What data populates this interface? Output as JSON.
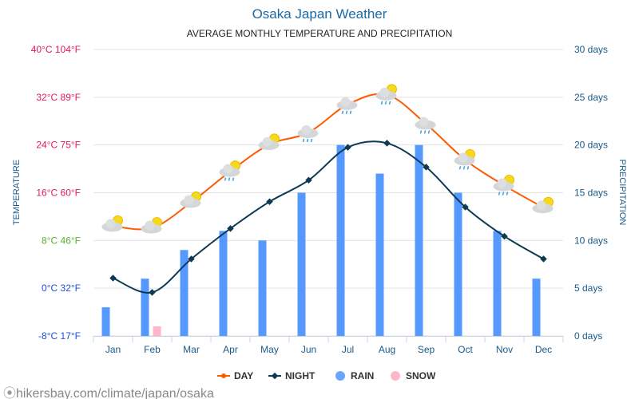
{
  "title": "Osaka Japan Weather",
  "subtitle": "AVERAGE MONTHLY TEMPERATURE AND PRECIPITATION",
  "footer": "hikersbay.com/climate/japan/osaka",
  "chart_data": {
    "type": "line+bar",
    "categories": [
      "Jan",
      "Feb",
      "Mar",
      "Apr",
      "May",
      "Jun",
      "Jul",
      "Aug",
      "Sep",
      "Oct",
      "Nov",
      "Dec"
    ],
    "ylabel_left": "TEMPERATURE",
    "ylabel_right": "PRECIPITATION",
    "ylim_left": [
      -8,
      40
    ],
    "ylim_right": [
      0,
      30
    ],
    "left_ticks": [
      {
        "v": 40,
        "label": "40°C 104°F",
        "color": "#e8175d"
      },
      {
        "v": 32,
        "label": "32°C 89°F",
        "color": "#e8175d"
      },
      {
        "v": 24,
        "label": "24°C 75°F",
        "color": "#e8175d"
      },
      {
        "v": 16,
        "label": "16°C 60°F",
        "color": "#e8175d"
      },
      {
        "v": 8,
        "label": "8°C 46°F",
        "color": "#5aae2e"
      },
      {
        "v": 0,
        "label": "0°C 32°F",
        "color": "#1f4fd6"
      },
      {
        "v": -8,
        "label": "-8°C 17°F",
        "color": "#1f4fd6"
      }
    ],
    "right_ticks": [
      {
        "v": 30,
        "label": "30 days"
      },
      {
        "v": 25,
        "label": "25 days"
      },
      {
        "v": 20,
        "label": "20 days"
      },
      {
        "v": 15,
        "label": "15 days"
      },
      {
        "v": 10,
        "label": "10 days"
      },
      {
        "v": 5,
        "label": "5 days"
      },
      {
        "v": 0,
        "label": "0 days"
      }
    ],
    "grid": true,
    "legend_position": "bottom",
    "series": [
      {
        "name": "DAY",
        "type": "line",
        "axis": "left",
        "color": "#ff5a00",
        "values": [
          10.4,
          10.1,
          14.4,
          19.6,
          24.1,
          26.1,
          30.8,
          32.4,
          27.5,
          21.5,
          17.2,
          13.5
        ]
      },
      {
        "name": "NIGHT",
        "type": "line",
        "axis": "left",
        "color": "#0d3a52",
        "values": [
          1.7,
          -0.7,
          4.9,
          10.0,
          14.5,
          18.1,
          23.6,
          24.3,
          20.3,
          13.6,
          8.7,
          4.9
        ]
      },
      {
        "name": "RAIN",
        "type": "bar",
        "axis": "right",
        "color": "#5599ff",
        "values": [
          3,
          6,
          9,
          11,
          10,
          15,
          20,
          17,
          20,
          15,
          11,
          6
        ]
      },
      {
        "name": "SNOW",
        "type": "bar",
        "axis": "right",
        "color": "#ffb6c8",
        "values": [
          0,
          1,
          0,
          0,
          0,
          0,
          0,
          0,
          0,
          0,
          0,
          0
        ]
      }
    ],
    "weather_icons": [
      "sun-cloud",
      "sun-cloud",
      "sun-cloud",
      "sun-cloud-rain",
      "sun-cloud",
      "cloud-rain",
      "cloud-rain",
      "sun-cloud-rain",
      "cloud-rain",
      "sun-cloud-rain",
      "sun-cloud-rain",
      "sun-cloud"
    ]
  }
}
